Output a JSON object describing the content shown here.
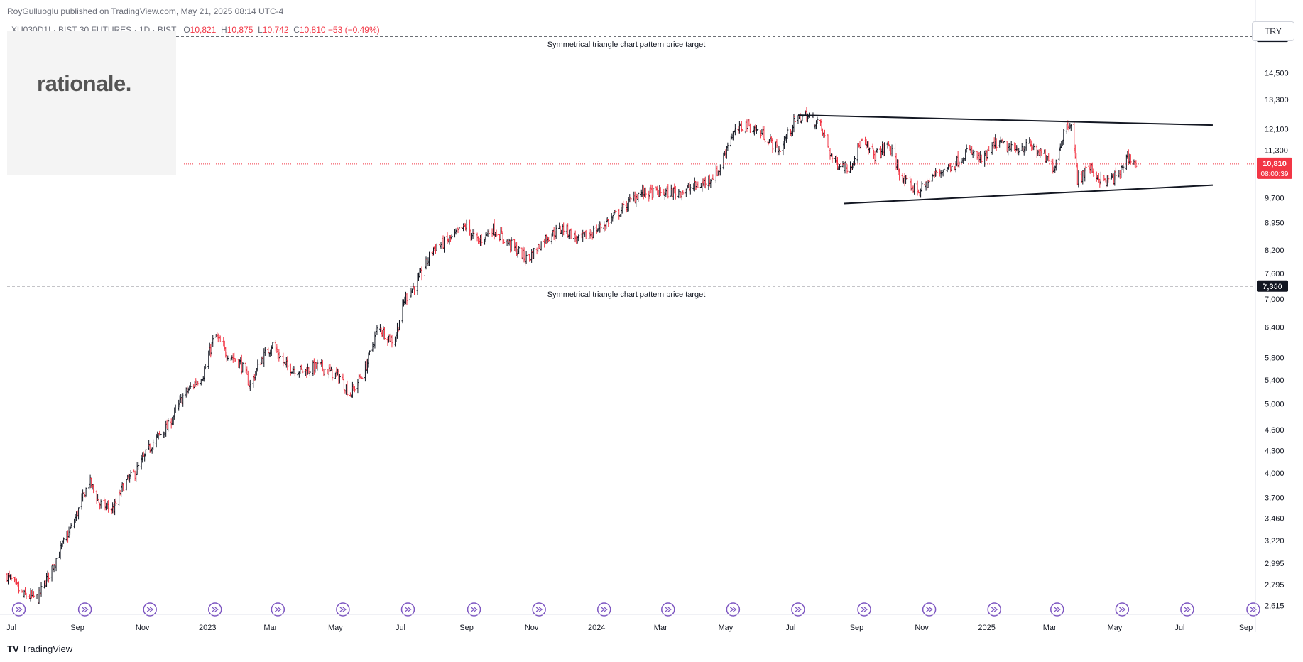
{
  "header": {
    "attribution": "RoyGulluoglu published on TradingView.com, May 21, 2025 08:14 UTC-4",
    "symbol": "XU030D1! · BIST 30 FUTURES · 1D · BIST",
    "ohlc": {
      "open_label": "O",
      "open": "10,821",
      "high_label": "H",
      "high": "10,875",
      "low_label": "L",
      "low": "10,742",
      "close_label": "C",
      "close": "10,810",
      "change": "−53 (−0.49%)"
    }
  },
  "logo": {
    "text": "rationale."
  },
  "currency_button": {
    "label": "TRY"
  },
  "footer": {
    "brand_logo": "TV",
    "brand": "TradingView"
  },
  "colors": {
    "up": "#131722",
    "down": "#f23645",
    "last_price": "#f23645",
    "target_line": "#131722",
    "axis_text": "#131722",
    "event_icon": "#7e57c2"
  },
  "chart_data": {
    "type": "ohlc",
    "y_scale": "log",
    "ylim": [
      2540,
      17500
    ],
    "x_range": [
      "2022-06-27",
      "2025-09-10"
    ],
    "y_ticks": [
      "16,300",
      "14,500",
      "13,300",
      "12,100",
      "11,300",
      "9,700",
      "8,950",
      "8,200",
      "7,600",
      "7,300",
      "7,000",
      "6,400",
      "5,800",
      "5,400",
      "5,000",
      "4,600",
      "4,300",
      "4,000",
      "3,700",
      "3,460",
      "3,220",
      "2,995",
      "2,795",
      "2,615"
    ],
    "y_tick_values": [
      16300,
      14500,
      13300,
      12100,
      11300,
      9700,
      8950,
      8200,
      7600,
      7300,
      7000,
      6400,
      5800,
      5400,
      5000,
      4600,
      4300,
      4000,
      3700,
      3460,
      3220,
      2995,
      2795,
      2615
    ],
    "x_ticks": [
      {
        "label": "Jul",
        "date": "2022-07-01"
      },
      {
        "label": "Sep",
        "date": "2022-09-01"
      },
      {
        "label": "Nov",
        "date": "2022-11-01"
      },
      {
        "label": "2023",
        "date": "2023-01-01"
      },
      {
        "label": "Mar",
        "date": "2023-03-01"
      },
      {
        "label": "May",
        "date": "2023-05-01"
      },
      {
        "label": "Jul",
        "date": "2023-07-01"
      },
      {
        "label": "Sep",
        "date": "2023-09-01"
      },
      {
        "label": "Nov",
        "date": "2023-11-01"
      },
      {
        "label": "2024",
        "date": "2024-01-01"
      },
      {
        "label": "Mar",
        "date": "2024-03-01"
      },
      {
        "label": "May",
        "date": "2024-05-01"
      },
      {
        "label": "Jul",
        "date": "2024-07-01"
      },
      {
        "label": "Sep",
        "date": "2024-09-01"
      },
      {
        "label": "Nov",
        "date": "2024-11-01"
      },
      {
        "label": "2025",
        "date": "2025-01-01"
      },
      {
        "label": "Mar",
        "date": "2025-03-01"
      },
      {
        "label": "May",
        "date": "2025-05-01"
      },
      {
        "label": "Jul",
        "date": "2025-07-01"
      },
      {
        "label": "Sep",
        "date": "2025-09-01"
      }
    ],
    "price_path": [
      {
        "date": "2022-06-27",
        "price": 2880
      },
      {
        "date": "2022-07-12",
        "price": 2700
      },
      {
        "date": "2022-07-26",
        "price": 2680
      },
      {
        "date": "2022-08-10",
        "price": 3000
      },
      {
        "date": "2022-08-28",
        "price": 3400
      },
      {
        "date": "2022-09-12",
        "price": 3900
      },
      {
        "date": "2022-09-22",
        "price": 3620
      },
      {
        "date": "2022-10-05",
        "price": 3560
      },
      {
        "date": "2022-10-14",
        "price": 3850
      },
      {
        "date": "2022-10-25",
        "price": 4000
      },
      {
        "date": "2022-11-10",
        "price": 4400
      },
      {
        "date": "2022-11-25",
        "price": 4650
      },
      {
        "date": "2022-12-10",
        "price": 5150
      },
      {
        "date": "2022-12-28",
        "price": 5500
      },
      {
        "date": "2023-01-08",
        "price": 6250
      },
      {
        "date": "2023-01-18",
        "price": 5900
      },
      {
        "date": "2023-02-01",
        "price": 5700
      },
      {
        "date": "2023-02-10",
        "price": 5300
      },
      {
        "date": "2023-02-20",
        "price": 5750
      },
      {
        "date": "2023-03-03",
        "price": 6050
      },
      {
        "date": "2023-03-15",
        "price": 5650
      },
      {
        "date": "2023-04-01",
        "price": 5550
      },
      {
        "date": "2023-04-15",
        "price": 5650
      },
      {
        "date": "2023-05-05",
        "price": 5450
      },
      {
        "date": "2023-05-15",
        "price": 5150
      },
      {
        "date": "2023-05-29",
        "price": 5600
      },
      {
        "date": "2023-06-10",
        "price": 6400
      },
      {
        "date": "2023-06-25",
        "price": 6100
      },
      {
        "date": "2023-07-05",
        "price": 7000
      },
      {
        "date": "2023-07-18",
        "price": 7450
      },
      {
        "date": "2023-08-01",
        "price": 8250
      },
      {
        "date": "2023-08-15",
        "price": 8450
      },
      {
        "date": "2023-08-31",
        "price": 8850
      },
      {
        "date": "2023-09-12",
        "price": 8400
      },
      {
        "date": "2023-09-25",
        "price": 8800
      },
      {
        "date": "2023-10-10",
        "price": 8400
      },
      {
        "date": "2023-10-28",
        "price": 7950
      },
      {
        "date": "2023-11-15",
        "price": 8550
      },
      {
        "date": "2023-12-01",
        "price": 8800
      },
      {
        "date": "2023-12-15",
        "price": 8450
      },
      {
        "date": "2024-01-01",
        "price": 8750
      },
      {
        "date": "2024-01-20",
        "price": 9200
      },
      {
        "date": "2024-02-10",
        "price": 9850
      },
      {
        "date": "2024-03-01",
        "price": 9850
      },
      {
        "date": "2024-03-20",
        "price": 9900
      },
      {
        "date": "2024-04-10",
        "price": 10150
      },
      {
        "date": "2024-04-25",
        "price": 10600
      },
      {
        "date": "2024-05-05",
        "price": 11800
      },
      {
        "date": "2024-05-20",
        "price": 12300
      },
      {
        "date": "2024-06-05",
        "price": 11900
      },
      {
        "date": "2024-06-20",
        "price": 11300
      },
      {
        "date": "2024-07-05",
        "price": 12400
      },
      {
        "date": "2024-07-15",
        "price": 12650
      },
      {
        "date": "2024-07-28",
        "price": 12300
      },
      {
        "date": "2024-08-10",
        "price": 10900
      },
      {
        "date": "2024-08-25",
        "price": 10700
      },
      {
        "date": "2024-09-05",
        "price": 11600
      },
      {
        "date": "2024-09-18",
        "price": 11100
      },
      {
        "date": "2024-10-01",
        "price": 11500
      },
      {
        "date": "2024-10-15",
        "price": 10200
      },
      {
        "date": "2024-10-30",
        "price": 9900
      },
      {
        "date": "2024-11-15",
        "price": 10500
      },
      {
        "date": "2024-12-01",
        "price": 10800
      },
      {
        "date": "2024-12-15",
        "price": 11300
      },
      {
        "date": "2024-12-28",
        "price": 10900
      },
      {
        "date": "2025-01-10",
        "price": 11600
      },
      {
        "date": "2025-01-25",
        "price": 11300
      },
      {
        "date": "2025-02-10",
        "price": 11500
      },
      {
        "date": "2025-02-25",
        "price": 11000
      },
      {
        "date": "2025-03-05",
        "price": 10700
      },
      {
        "date": "2025-03-15",
        "price": 12100
      },
      {
        "date": "2025-03-21",
        "price": 12400
      },
      {
        "date": "2025-03-27",
        "price": 10300
      },
      {
        "date": "2025-04-07",
        "price": 10700
      },
      {
        "date": "2025-04-20",
        "price": 10200
      },
      {
        "date": "2025-05-05",
        "price": 10400
      },
      {
        "date": "2025-05-12",
        "price": 11100
      },
      {
        "date": "2025-05-21",
        "price": 10810
      }
    ],
    "horizontal_lines": [
      {
        "price": 16300,
        "label": "Symmetrical triangle chart pattern price target",
        "price_label": "16,300"
      },
      {
        "price": 7300,
        "label": "Symmetrical triangle chart pattern price target",
        "price_label": "7,300"
      }
    ],
    "trendlines": [
      {
        "name": "upper",
        "start": {
          "date": "2024-07-08",
          "price": 12650
        },
        "end": {
          "date": "2025-08-01",
          "price": 12250
        }
      },
      {
        "name": "lower",
        "start": {
          "date": "2024-08-20",
          "price": 9520
        },
        "end": {
          "date": "2025-08-01",
          "price": 10100
        }
      }
    ],
    "last_price": {
      "price": 10810,
      "label": "10,810",
      "countdown": "08:00:39"
    },
    "event_dates": [
      "2022-07-08",
      "2022-09-08",
      "2022-11-08",
      "2023-01-08",
      "2023-03-08",
      "2023-05-08",
      "2023-07-08",
      "2023-09-08",
      "2023-11-08",
      "2024-01-08",
      "2024-03-08",
      "2024-05-08",
      "2024-07-08",
      "2024-09-08",
      "2024-11-08",
      "2025-01-08",
      "2025-03-08",
      "2025-05-08",
      "2025-07-08",
      "2025-09-08"
    ]
  }
}
